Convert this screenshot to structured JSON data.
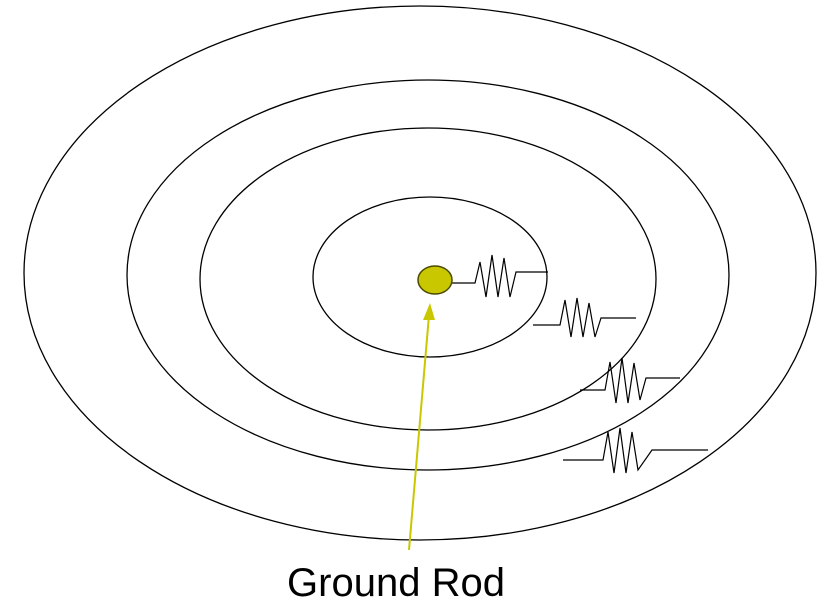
{
  "label": "Ground Rod"
}
